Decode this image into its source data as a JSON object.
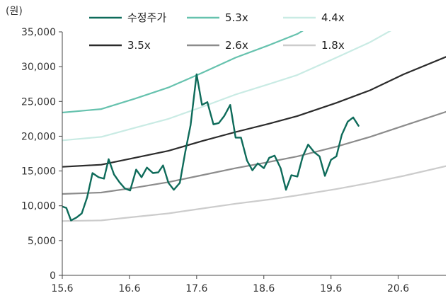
{
  "chart_data": {
    "type": "line",
    "unit_label": "(원)",
    "xlabel": "",
    "ylabel": "",
    "xlim": [
      2015.42,
      2021.13
    ],
    "ylim": [
      0,
      35000
    ],
    "x_ticks": [
      {
        "label": "15.6",
        "value": 2015.42
      },
      {
        "label": "16.6",
        "value": 2016.42
      },
      {
        "label": "17.6",
        "value": 2017.42
      },
      {
        "label": "18.6",
        "value": 2018.42
      },
      {
        "label": "19.6",
        "value": 2019.42
      },
      {
        "label": "20.6",
        "value": 2020.42
      }
    ],
    "y_ticks": [
      {
        "label": "0",
        "value": 0
      },
      {
        "label": "5,000",
        "value": 5000
      },
      {
        "label": "10,000",
        "value": 10000
      },
      {
        "label": "15,000",
        "value": 15000
      },
      {
        "label": "20,000",
        "value": 20000
      },
      {
        "label": "25,000",
        "value": 25000
      },
      {
        "label": "30,000",
        "value": 30000
      },
      {
        "label": "35,000",
        "value": 35000
      }
    ],
    "grid": false,
    "legend_position": "top",
    "series": [
      {
        "name": "수정주가",
        "color": "#0e6b5a",
        "width": 2.4,
        "points": [
          [
            2015.42,
            9900
          ],
          [
            2015.48,
            9700
          ],
          [
            2015.55,
            7900
          ],
          [
            2015.63,
            8300
          ],
          [
            2015.71,
            8900
          ],
          [
            2015.79,
            11200
          ],
          [
            2015.87,
            14700
          ],
          [
            2015.96,
            14100
          ],
          [
            2016.04,
            13900
          ],
          [
            2016.11,
            16700
          ],
          [
            2016.19,
            14500
          ],
          [
            2016.27,
            13400
          ],
          [
            2016.35,
            12500
          ],
          [
            2016.43,
            12200
          ],
          [
            2016.52,
            15200
          ],
          [
            2016.6,
            14100
          ],
          [
            2016.68,
            15500
          ],
          [
            2016.77,
            14700
          ],
          [
            2016.85,
            14800
          ],
          [
            2016.92,
            15800
          ],
          [
            2017.0,
            13300
          ],
          [
            2017.08,
            12300
          ],
          [
            2017.17,
            13300
          ],
          [
            2017.25,
            17700
          ],
          [
            2017.33,
            21600
          ],
          [
            2017.42,
            28900
          ],
          [
            2017.5,
            24500
          ],
          [
            2017.58,
            24900
          ],
          [
            2017.67,
            21700
          ],
          [
            2017.75,
            21900
          ],
          [
            2017.83,
            22900
          ],
          [
            2017.92,
            24500
          ],
          [
            2018.0,
            19800
          ],
          [
            2018.08,
            19800
          ],
          [
            2018.17,
            16500
          ],
          [
            2018.25,
            15100
          ],
          [
            2018.33,
            16100
          ],
          [
            2018.42,
            15400
          ],
          [
            2018.5,
            16900
          ],
          [
            2018.58,
            17200
          ],
          [
            2018.67,
            15400
          ],
          [
            2018.75,
            12300
          ],
          [
            2018.83,
            14400
          ],
          [
            2018.92,
            14200
          ],
          [
            2019.0,
            17100
          ],
          [
            2019.08,
            18800
          ],
          [
            2019.17,
            17700
          ],
          [
            2019.25,
            17100
          ],
          [
            2019.33,
            14300
          ],
          [
            2019.42,
            16600
          ],
          [
            2019.5,
            17100
          ],
          [
            2019.58,
            20200
          ],
          [
            2019.67,
            22100
          ],
          [
            2019.75,
            22700
          ],
          [
            2019.83,
            21500
          ]
        ]
      },
      {
        "name": "5.3x",
        "color": "#66c2ae",
        "width": 2.2,
        "points": [
          [
            2015.42,
            23400
          ],
          [
            2016.0,
            23900
          ],
          [
            2016.5,
            25400
          ],
          [
            2017.0,
            27000
          ],
          [
            2017.5,
            29100
          ],
          [
            2018.0,
            31300
          ],
          [
            2018.5,
            33100
          ],
          [
            2018.92,
            34700
          ],
          [
            2019.25,
            36600
          ]
        ]
      },
      {
        "name": "4.4x",
        "color": "#c9ebe4",
        "width": 2.2,
        "points": [
          [
            2015.42,
            19400
          ],
          [
            2016.0,
            19900
          ],
          [
            2016.5,
            21200
          ],
          [
            2017.0,
            22500
          ],
          [
            2017.5,
            24200
          ],
          [
            2018.0,
            26000
          ],
          [
            2018.5,
            27500
          ],
          [
            2018.92,
            28800
          ],
          [
            2019.5,
            31300
          ],
          [
            2020.0,
            33500
          ],
          [
            2020.5,
            36200
          ]
        ]
      },
      {
        "name": "3.5x",
        "color": "#2b2b2b",
        "width": 2.2,
        "points": [
          [
            2015.42,
            15600
          ],
          [
            2016.0,
            15900
          ],
          [
            2016.5,
            16900
          ],
          [
            2017.0,
            17900
          ],
          [
            2017.5,
            19300
          ],
          [
            2018.0,
            20600
          ],
          [
            2018.5,
            21800
          ],
          [
            2018.92,
            22900
          ],
          [
            2019.5,
            24800
          ],
          [
            2020.0,
            26600
          ],
          [
            2020.5,
            28900
          ],
          [
            2021.13,
            31400
          ]
        ]
      },
      {
        "name": "2.6x",
        "color": "#8c8c8c",
        "width": 2.2,
        "points": [
          [
            2015.42,
            11700
          ],
          [
            2016.0,
            11900
          ],
          [
            2016.5,
            12600
          ],
          [
            2017.0,
            13400
          ],
          [
            2017.5,
            14400
          ],
          [
            2018.0,
            15400
          ],
          [
            2018.5,
            16300
          ],
          [
            2018.92,
            17100
          ],
          [
            2019.5,
            18500
          ],
          [
            2020.0,
            19900
          ],
          [
            2020.5,
            21500
          ],
          [
            2021.13,
            23500
          ]
        ]
      },
      {
        "name": "1.8x",
        "color": "#cccccc",
        "width": 2.2,
        "points": [
          [
            2015.42,
            7800
          ],
          [
            2016.0,
            7900
          ],
          [
            2016.5,
            8400
          ],
          [
            2017.0,
            8900
          ],
          [
            2017.5,
            9600
          ],
          [
            2018.0,
            10300
          ],
          [
            2018.5,
            10900
          ],
          [
            2018.92,
            11500
          ],
          [
            2019.5,
            12400
          ],
          [
            2020.0,
            13300
          ],
          [
            2020.5,
            14300
          ],
          [
            2021.13,
            15700
          ]
        ]
      }
    ]
  }
}
